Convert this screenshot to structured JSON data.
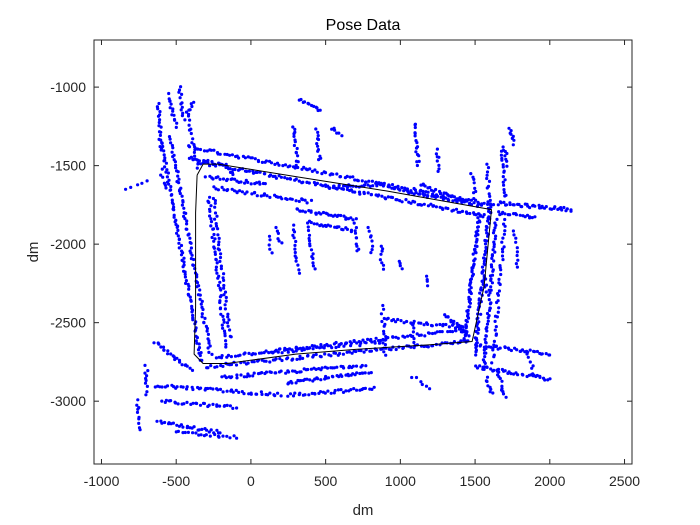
{
  "chart_data": {
    "type": "scatter",
    "title": "Pose Data",
    "xlabel": "dm",
    "ylabel": "dm",
    "xlim": [
      -1050,
      2550
    ],
    "ylim": [
      -3400,
      -700
    ],
    "y_reversed": true,
    "x_ticks": [
      -1000,
      -500,
      0,
      500,
      1000,
      1500,
      2000,
      2500
    ],
    "y_ticks": [
      -1000,
      -1500,
      -2000,
      -2500,
      -3000
    ],
    "x_tick_labels": [
      "-1000",
      "-500",
      "0",
      "500",
      "1000",
      "1500",
      "2000",
      "2500"
    ],
    "y_tick_labels": [
      "-1000",
      "-1500",
      "-2000",
      "-2500",
      "-3000"
    ],
    "grid": false,
    "colors": {
      "points": "#0000ff",
      "trajectory": "#000000",
      "axes": "#262626"
    },
    "series": [
      {
        "kind": "scan-points",
        "segments": [
          {
            "from": [
              -600,
              -1350
            ],
            "to": [
              -330,
              -2750
            ],
            "n": 90
          },
          {
            "from": [
              -540,
              -1320
            ],
            "to": [
              -270,
              -2700
            ],
            "n": 80
          },
          {
            "from": [
              -430,
              -1150
            ],
            "to": [
              -350,
              -1520
            ],
            "n": 18
          },
          {
            "from": [
              -280,
              -1700
            ],
            "to": [
              -170,
              -2650
            ],
            "n": 50
          },
          {
            "from": [
              -250,
              -1700
            ],
            "to": [
              -140,
              -2600
            ],
            "n": 40
          },
          {
            "from": [
              -620,
              -1100
            ],
            "to": [
              -600,
              -1400
            ],
            "n": 18
          },
          {
            "from": [
              -560,
              -1050
            ],
            "to": [
              -500,
              -1250
            ],
            "n": 14
          },
          {
            "from": [
              -480,
              -1000
            ],
            "to": [
              -450,
              -1200
            ],
            "n": 12
          },
          {
            "from": [
              -420,
              -1380
            ],
            "to": [
              1620,
              -1750
            ],
            "n": 120
          },
          {
            "from": [
              -330,
              -1480
            ],
            "to": [
              1560,
              -1820
            ],
            "n": 120
          },
          {
            "from": [
              -420,
              -1450
            ],
            "to": [
              -160,
              -1500
            ],
            "n": 20
          },
          {
            "from": [
              -300,
              -1570
            ],
            "to": [
              100,
              -1620
            ],
            "n": 25
          },
          {
            "from": [
              -250,
              -1640
            ],
            "to": [
              400,
              -1730
            ],
            "n": 40
          },
          {
            "from": [
              500,
              -1640
            ],
            "to": [
              880,
              -1620
            ],
            "n": 25
          },
          {
            "from": [
              880,
              -1620
            ],
            "to": [
              1160,
              -1690
            ],
            "n": 20
          },
          {
            "from": [
              1160,
              -1690
            ],
            "to": [
              1420,
              -1730
            ],
            "n": 18
          },
          {
            "from": [
              300,
              -1780
            ],
            "to": [
              700,
              -1840
            ],
            "n": 30
          },
          {
            "from": [
              380,
              -1860
            ],
            "to": [
              680,
              -1910
            ],
            "n": 22
          },
          {
            "from": [
              1130,
              -1620
            ],
            "to": [
              1540,
              -1760
            ],
            "n": 30
          },
          {
            "from": [
              1650,
              -1740
            ],
            "to": [
              2150,
              -1780
            ],
            "n": 40
          },
          {
            "from": [
              1650,
              -1800
            ],
            "to": [
              1900,
              -1830
            ],
            "n": 18
          },
          {
            "from": [
              1530,
              -1800
            ],
            "to": [
              1430,
              -2620
            ],
            "n": 70
          },
          {
            "from": [
              1600,
              -1750
            ],
            "to": [
              1500,
              -2700
            ],
            "n": 70
          },
          {
            "from": [
              1640,
              -1850
            ],
            "to": [
              1560,
              -2800
            ],
            "n": 60
          },
          {
            "from": [
              1700,
              -1850
            ],
            "to": [
              1620,
              -2750
            ],
            "n": 40
          },
          {
            "from": [
              1580,
              -1500
            ],
            "to": [
              1600,
              -1800
            ],
            "n": 15
          },
          {
            "from": [
              1680,
              -1380
            ],
            "to": [
              1700,
              -1700
            ],
            "n": 18
          },
          {
            "from": [
              1480,
              -1550
            ],
            "to": [
              1500,
              -1700
            ],
            "n": 8
          },
          {
            "from": [
              -300,
              -2780
            ],
            "to": [
              1450,
              -2620
            ],
            "n": 100
          },
          {
            "from": [
              -240,
              -2720
            ],
            "to": [
              1400,
              -2550
            ],
            "n": 90
          },
          {
            "from": [
              120,
              -2690
            ],
            "to": [
              900,
              -2620
            ],
            "n": 40
          },
          {
            "from": [
              -200,
              -2850
            ],
            "to": [
              760,
              -2770
            ],
            "n": 60
          },
          {
            "from": [
              240,
              -2880
            ],
            "to": [
              800,
              -2820
            ],
            "n": 40
          },
          {
            "from": [
              250,
              -2960
            ],
            "to": [
              820,
              -2920
            ],
            "n": 35
          },
          {
            "from": [
              -640,
              -2900
            ],
            "to": [
              200,
              -2960
            ],
            "n": 50
          },
          {
            "from": [
              -600,
              -3000
            ],
            "to": [
              -100,
              -3040
            ],
            "n": 30
          },
          {
            "from": [
              -620,
              -3130
            ],
            "to": [
              -200,
              -3200
            ],
            "n": 28
          },
          {
            "from": [
              -500,
              -3200
            ],
            "to": [
              -100,
              -3230
            ],
            "n": 20
          },
          {
            "from": [
              -700,
              -2780
            ],
            "to": [
              -700,
              -2950
            ],
            "n": 10
          },
          {
            "from": [
              -760,
              -3000
            ],
            "to": [
              -740,
              -3180
            ],
            "n": 10
          },
          {
            "from": [
              -640,
              -2630
            ],
            "to": [
              -400,
              -2800
            ],
            "n": 22
          },
          {
            "from": [
              1500,
              -2640
            ],
            "to": [
              2000,
              -2700
            ],
            "n": 35
          },
          {
            "from": [
              1500,
              -2780
            ],
            "to": [
              2000,
              -2860
            ],
            "n": 35
          },
          {
            "from": [
              1650,
              -2800
            ],
            "to": [
              1700,
              -2980
            ],
            "n": 12
          },
          {
            "from": [
              1580,
              -2850
            ],
            "to": [
              1610,
              -2950
            ],
            "n": 8
          },
          {
            "from": [
              900,
              -2480
            ],
            "to": [
              1420,
              -2530
            ],
            "n": 30
          },
          {
            "from": [
              1300,
              -2450
            ],
            "to": [
              1450,
              -2580
            ],
            "n": 20
          },
          {
            "from": [
              320,
              -1080
            ],
            "to": [
              470,
              -1150
            ],
            "n": 12
          },
          {
            "from": [
              290,
              -1250
            ],
            "to": [
              310,
              -1500
            ],
            "n": 15
          },
          {
            "from": [
              440,
              -1270
            ],
            "to": [
              460,
              -1470
            ],
            "n": 12
          },
          {
            "from": [
              550,
              -1260
            ],
            "to": [
              600,
              -1300
            ],
            "n": 6
          },
          {
            "from": [
              1100,
              -1230
            ],
            "to": [
              1120,
              -1500
            ],
            "n": 16
          },
          {
            "from": [
              1240,
              -1400
            ],
            "to": [
              1260,
              -1530
            ],
            "n": 8
          },
          {
            "from": [
              1730,
              -1260
            ],
            "to": [
              1760,
              -1360
            ],
            "n": 8
          },
          {
            "from": [
              1700,
              -1400
            ],
            "to": [
              1720,
              -1500
            ],
            "n": 6
          },
          {
            "from": [
              -380,
              -1100
            ],
            "to": [
              -420,
              -1150
            ],
            "n": 5
          },
          {
            "from": [
              280,
              -1880
            ],
            "to": [
              320,
              -2180
            ],
            "n": 15
          },
          {
            "from": [
              390,
              -1900
            ],
            "to": [
              420,
              -2150
            ],
            "n": 14
          },
          {
            "from": [
              170,
              -1900
            ],
            "to": [
              200,
              -2000
            ],
            "n": 6
          },
          {
            "from": [
              120,
              -1950
            ],
            "to": [
              140,
              -2050
            ],
            "n": 5
          },
          {
            "from": [
              700,
              -1870
            ],
            "to": [
              720,
              -2050
            ],
            "n": 10
          },
          {
            "from": [
              790,
              -1900
            ],
            "to": [
              810,
              -2050
            ],
            "n": 8
          },
          {
            "from": [
              870,
              -2010
            ],
            "to": [
              880,
              -2150
            ],
            "n": 8
          },
          {
            "from": [
              880,
              -2400
            ],
            "to": [
              900,
              -2700
            ],
            "n": 15
          },
          {
            "from": [
              1080,
              -2500
            ],
            "to": [
              1090,
              -2650
            ],
            "n": 8
          },
          {
            "from": [
              990,
              -2110
            ],
            "to": [
              1010,
              -2160
            ],
            "n": 4
          },
          {
            "from": [
              1170,
              -2200
            ],
            "to": [
              1190,
              -2260
            ],
            "n": 4
          },
          {
            "from": [
              1550,
              -2180
            ],
            "to": [
              1580,
              -2300
            ],
            "n": 6
          },
          {
            "from": [
              1760,
              -1920
            ],
            "to": [
              1790,
              -2150
            ],
            "n": 10
          },
          {
            "from": [
              1850,
              -2680
            ],
            "to": [
              1900,
              -2840
            ],
            "n": 8
          },
          {
            "from": [
              1080,
              -2840
            ],
            "to": [
              1200,
              -2920
            ],
            "n": 6
          },
          {
            "from": [
              -830,
              -1660
            ],
            "to": [
              -700,
              -1600
            ],
            "n": 5
          },
          {
            "from": [
              -600,
              -1530
            ],
            "to": [
              -570,
              -1650
            ],
            "n": 6
          },
          {
            "from": [
              -160,
              -1520
            ],
            "to": [
              -100,
              -1580
            ],
            "n": 5
          }
        ]
      },
      {
        "kind": "trajectory",
        "points": [
          [
            -360,
            -1560
          ],
          [
            -320,
            -1490
          ],
          [
            -220,
            -1490
          ],
          [
            300,
            -1570
          ],
          [
            900,
            -1660
          ],
          [
            1610,
            -1780
          ],
          [
            1560,
            -2270
          ],
          [
            1480,
            -2620
          ],
          [
            1200,
            -2640
          ],
          [
            700,
            -2670
          ],
          [
            300,
            -2700
          ],
          [
            -160,
            -2760
          ],
          [
            -320,
            -2760
          ],
          [
            -380,
            -2700
          ],
          [
            -370,
            -2400
          ],
          [
            -370,
            -1800
          ],
          [
            -360,
            -1560
          ]
        ]
      }
    ]
  }
}
